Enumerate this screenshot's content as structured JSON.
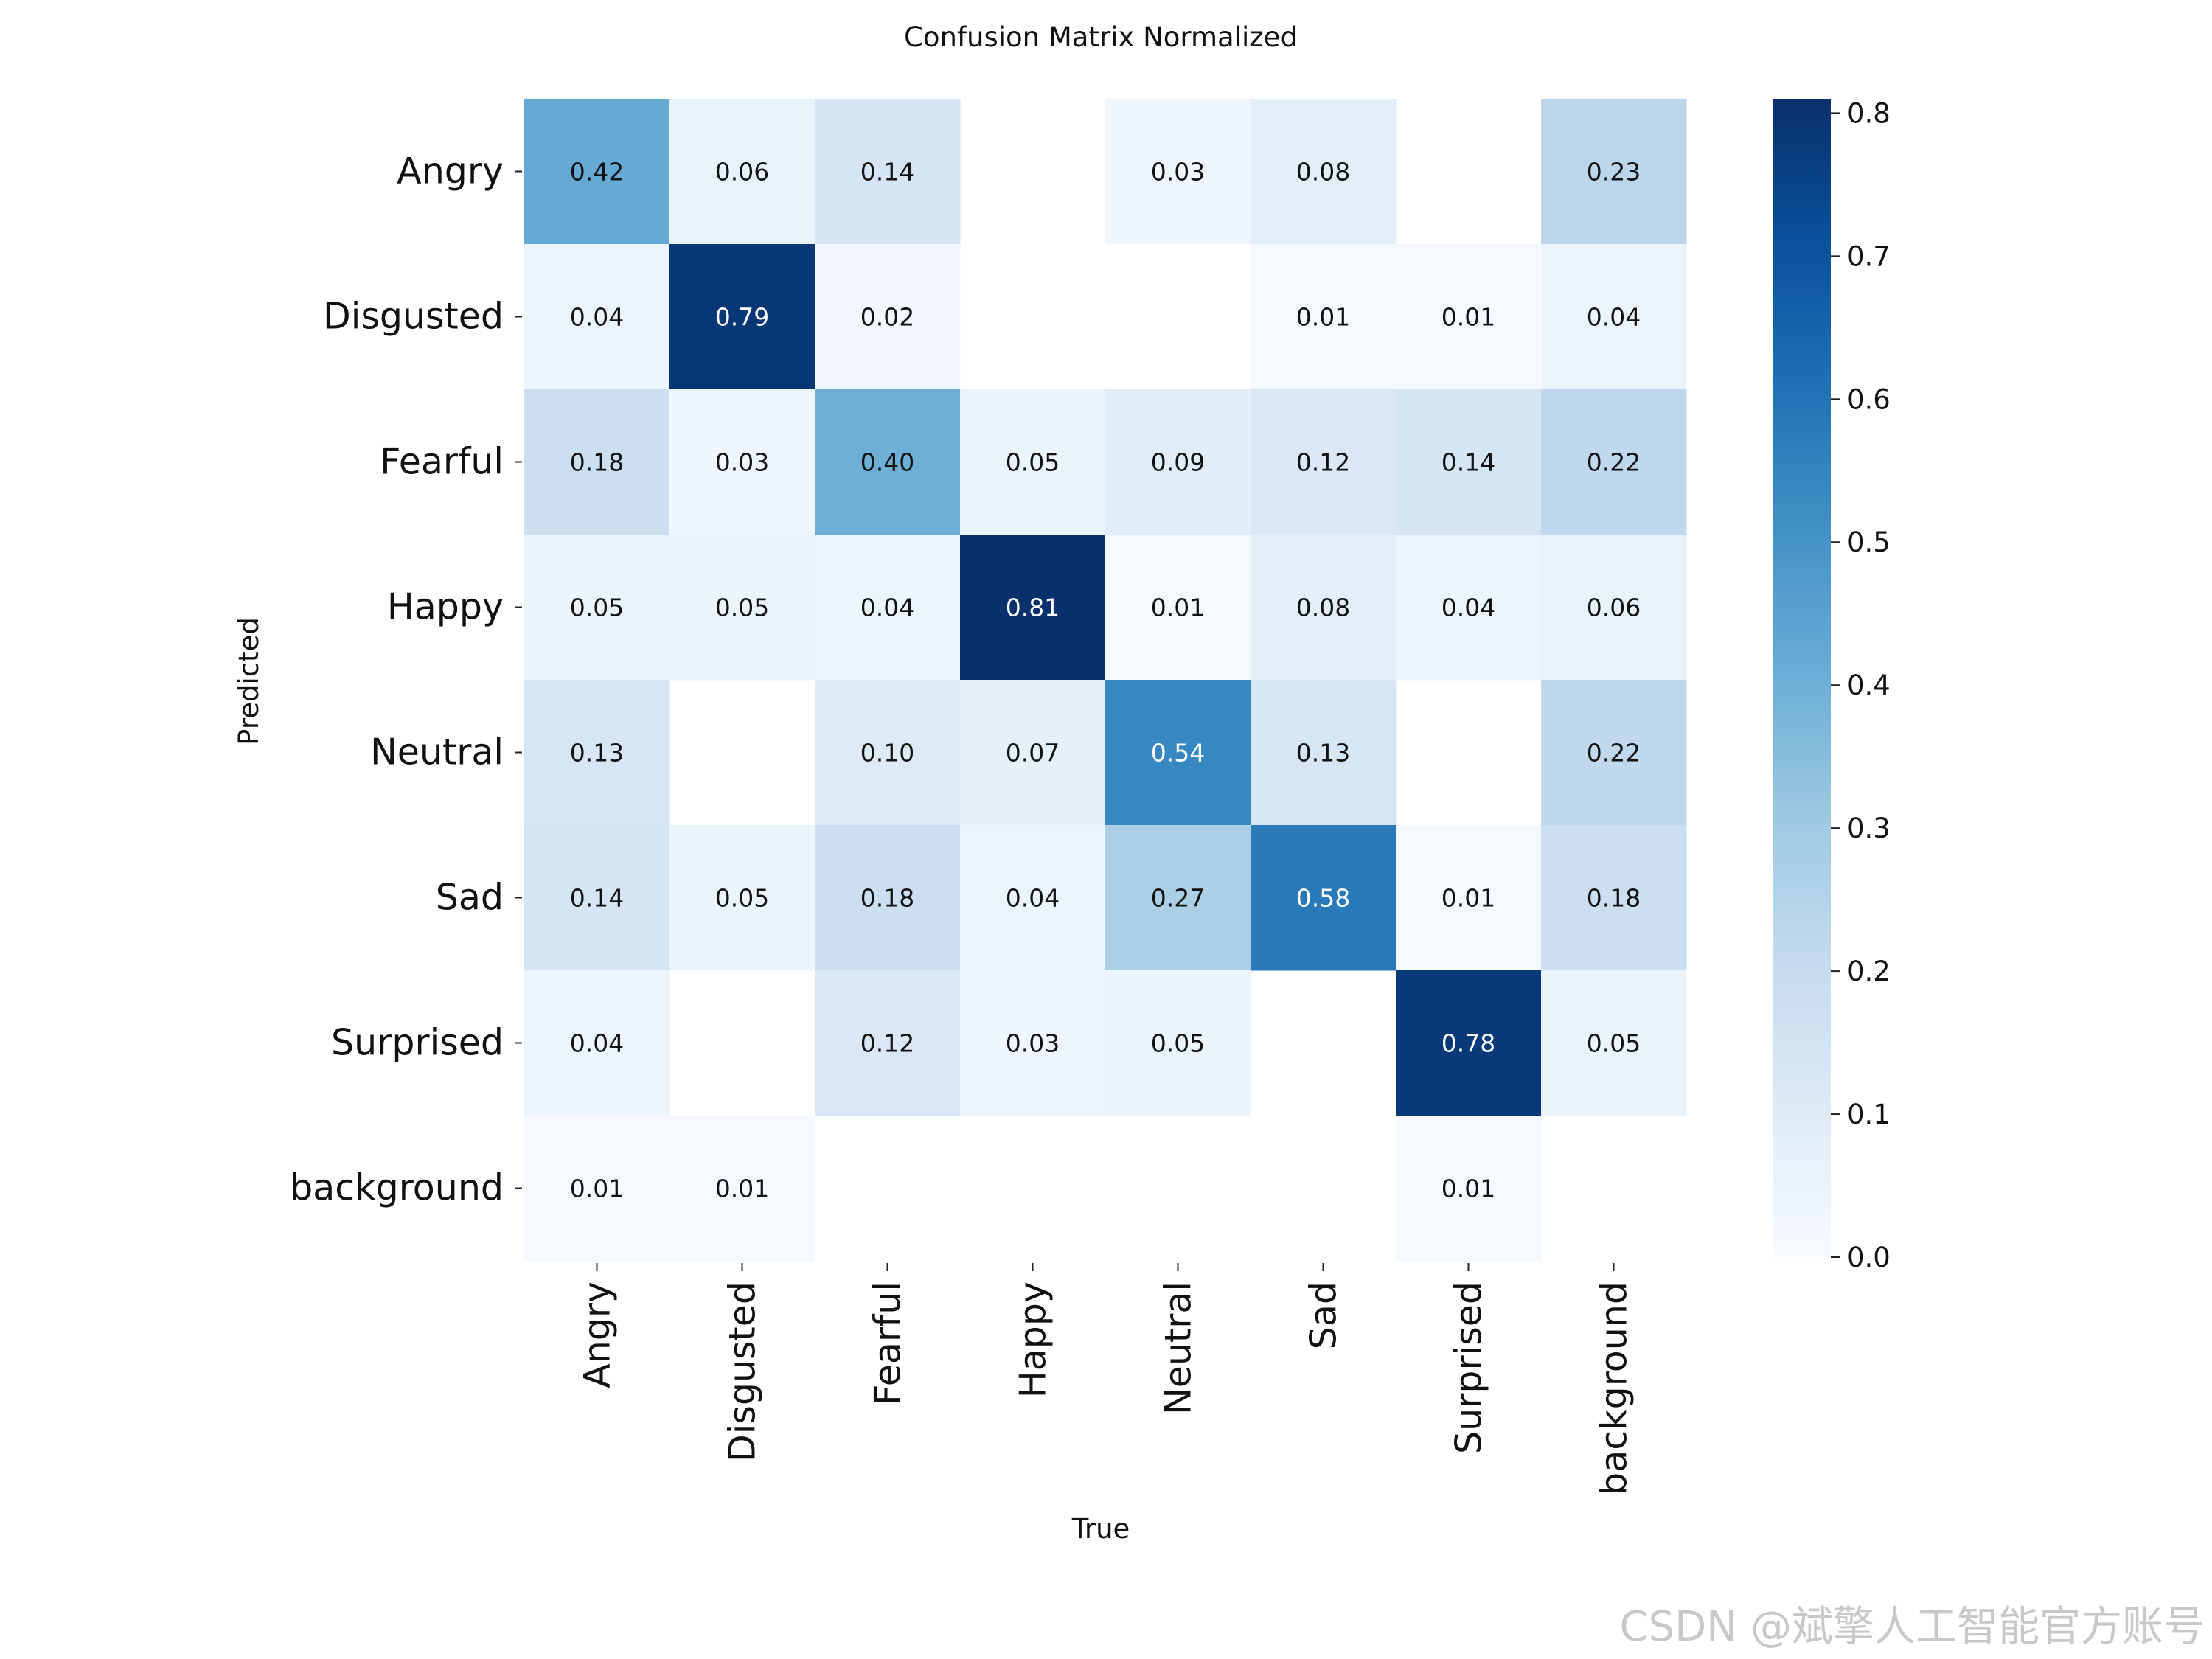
{
  "chart_data": {
    "type": "heatmap",
    "title": "Confusion Matrix Normalized",
    "xlabel": "True",
    "ylabel": "Predicted",
    "x_categories": [
      "Angry",
      "Disgusted",
      "Fearful",
      "Happy",
      "Neutral",
      "Sad",
      "Surprised",
      "background"
    ],
    "y_categories": [
      "Angry",
      "Disgusted",
      "Fearful",
      "Happy",
      "Neutral",
      "Sad",
      "Surprised",
      "background"
    ],
    "values": [
      [
        0.42,
        0.06,
        0.14,
        null,
        0.03,
        0.08,
        null,
        0.23
      ],
      [
        0.04,
        0.79,
        0.02,
        null,
        null,
        0.01,
        0.01,
        0.04
      ],
      [
        0.18,
        0.03,
        0.4,
        0.05,
        0.09,
        0.12,
        0.14,
        0.22
      ],
      [
        0.05,
        0.05,
        0.04,
        0.81,
        0.01,
        0.08,
        0.04,
        0.06
      ],
      [
        0.13,
        null,
        0.1,
        0.07,
        0.54,
        0.13,
        null,
        0.22
      ],
      [
        0.14,
        0.05,
        0.18,
        0.04,
        0.27,
        0.58,
        0.01,
        0.18
      ],
      [
        0.04,
        null,
        0.12,
        0.03,
        0.05,
        null,
        0.78,
        0.05
      ],
      [
        0.01,
        0.01,
        null,
        null,
        null,
        null,
        0.01,
        null
      ]
    ],
    "colorscale": "Blues",
    "colorbar": {
      "min": 0.0,
      "max": 0.81,
      "ticks": [
        "0.0",
        "0.1",
        "0.2",
        "0.3",
        "0.4",
        "0.5",
        "0.6",
        "0.7",
        "0.8"
      ]
    }
  },
  "watermark": "CSDN @斌擎人工智能官方账号"
}
